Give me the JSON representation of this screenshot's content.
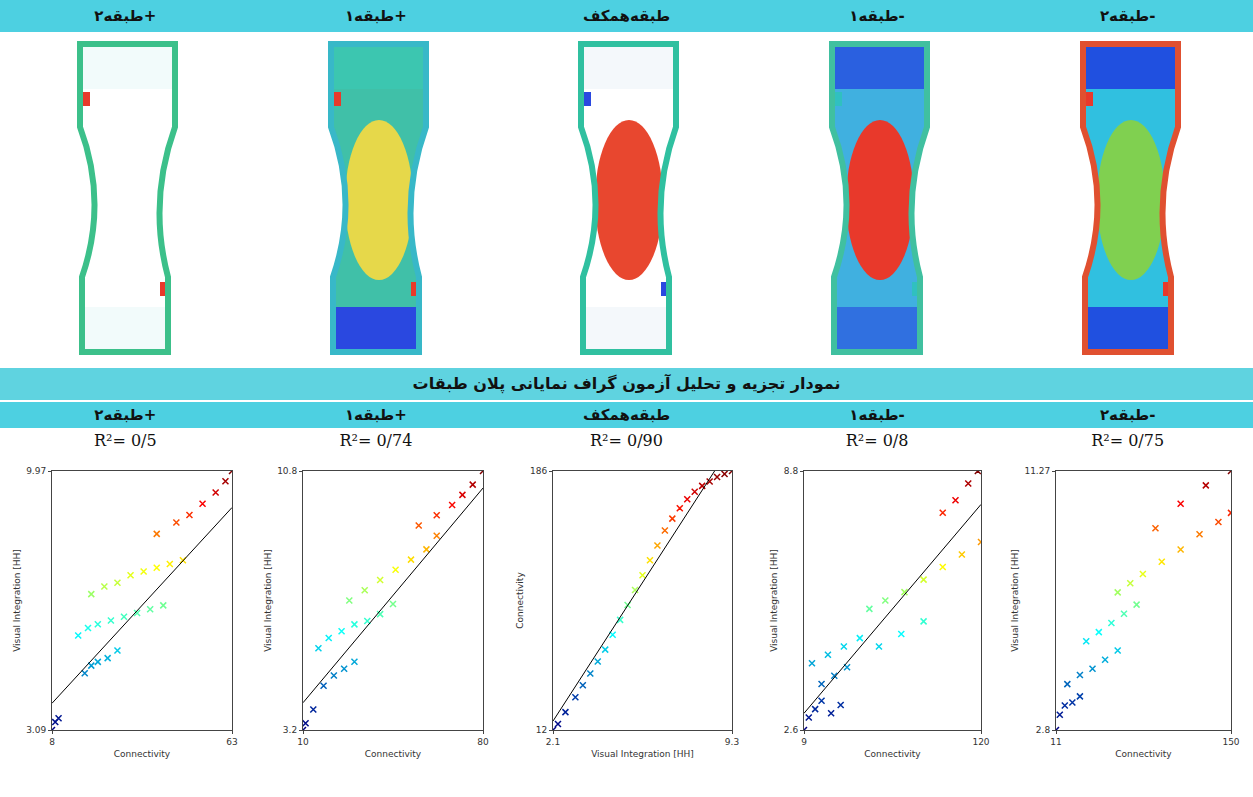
{
  "header": {
    "floors": [
      "طبقه۲+",
      "طبقه۱+",
      "طبقه‌همکف",
      "طبقه۱-",
      "طبقه۲-"
    ]
  },
  "section_title": "نمودار تجزیه و تحلیل آزمون گراف نمایانی پلان طبقات",
  "chart_data": [
    {
      "type": "scatter",
      "title": "طبقه۲+",
      "subtitle": "R²= 0/5",
      "x_label": "Connectivity",
      "y_label": "Visual Integration [HH]",
      "xlim": [
        8,
        63
      ],
      "ylim": [
        3.09,
        9.97
      ],
      "xticks": [
        8,
        63
      ],
      "yticks": [
        3.09,
        9.97
      ],
      "grid": false,
      "marker": "x",
      "series": [
        {
          "type": "scatter",
          "x": [
            8,
            9,
            10,
            18,
            20,
            22,
            25,
            28,
            16,
            19,
            22,
            26,
            30,
            34,
            38,
            42,
            20,
            24,
            28,
            32,
            36,
            40,
            44,
            48,
            40,
            46,
            50,
            54,
            58,
            61,
            63
          ],
          "values": [
            3.09,
            3.3,
            3.4,
            4.6,
            4.8,
            4.9,
            5.0,
            5.2,
            5.6,
            5.8,
            5.9,
            6.0,
            6.1,
            6.2,
            6.3,
            6.4,
            6.7,
            6.9,
            7.0,
            7.2,
            7.3,
            7.4,
            7.5,
            7.6,
            8.3,
            8.6,
            8.8,
            9.1,
            9.4,
            9.7,
            9.97
          ]
        },
        {
          "type": "line",
          "color": "#000000",
          "x": [
            8,
            63
          ],
          "values": [
            3.8,
            9.0
          ]
        }
      ]
    },
    {
      "type": "scatter",
      "title": "طبقه۱+",
      "subtitle": "R²= 0/74",
      "x_label": "Connectivity",
      "y_label": "Visual Integration [HH]",
      "xlim": [
        10,
        80
      ],
      "ylim": [
        3.2,
        10.8
      ],
      "xticks": [
        10,
        80
      ],
      "yticks": [
        3.2,
        10.8
      ],
      "grid": false,
      "marker": "x",
      "series": [
        {
          "type": "scatter",
          "x": [
            10,
            11,
            14,
            18,
            22,
            26,
            30,
            16,
            20,
            25,
            30,
            35,
            40,
            45,
            28,
            34,
            40,
            46,
            52,
            58,
            62,
            55,
            62,
            68,
            72,
            76,
            80
          ],
          "values": [
            3.2,
            3.4,
            3.8,
            4.5,
            4.8,
            5.0,
            5.2,
            5.6,
            5.9,
            6.1,
            6.3,
            6.4,
            6.6,
            6.9,
            7.0,
            7.3,
            7.6,
            7.9,
            8.2,
            8.5,
            8.9,
            9.2,
            9.5,
            9.8,
            10.1,
            10.4,
            10.8
          ]
        },
        {
          "type": "line",
          "color": "#000000",
          "x": [
            10,
            80
          ],
          "values": [
            4.0,
            10.3
          ]
        }
      ]
    },
    {
      "type": "scatter",
      "title": "طبقه‌همکف",
      "subtitle": "R²= 0/90",
      "x_label": "Visual Integration [HH]",
      "y_label": "Connectivity",
      "xlim": [
        2.1,
        9.3
      ],
      "ylim": [
        12,
        186
      ],
      "xticks": [
        2.1,
        9.3
      ],
      "yticks": [
        12,
        186
      ],
      "grid": false,
      "marker": "x",
      "series": [
        {
          "type": "scatter",
          "x": [
            2.1,
            2.3,
            2.6,
            3.0,
            3.3,
            3.6,
            3.9,
            4.2,
            4.5,
            4.8,
            5.1,
            5.4,
            5.7,
            6.0,
            6.3,
            6.6,
            6.9,
            7.2,
            7.5,
            7.8,
            8.1,
            8.4,
            8.7,
            9.0,
            9.3
          ],
          "values": [
            12,
            16,
            24,
            34,
            42,
            50,
            58,
            66,
            76,
            86,
            96,
            106,
            116,
            126,
            136,
            146,
            154,
            161,
            167,
            172,
            176,
            179,
            182,
            184,
            186
          ]
        },
        {
          "type": "line",
          "color": "#000000",
          "x": [
            2.1,
            8.6
          ],
          "values": [
            18,
            186
          ]
        }
      ]
    },
    {
      "type": "scatter",
      "title": "طبقه۱-",
      "subtitle": "R²= 0/8",
      "x_label": "Connectivity",
      "y_label": "Visual Integration [HH]",
      "xlim": [
        9,
        120
      ],
      "ylim": [
        2.6,
        8.8
      ],
      "xticks": [
        9,
        120
      ],
      "yticks": [
        2.6,
        8.8
      ],
      "grid": false,
      "marker": "x",
      "series": [
        {
          "type": "scatter",
          "x": [
            9,
            12,
            16,
            20,
            26,
            32,
            20,
            28,
            36,
            14,
            24,
            34,
            44,
            56,
            70,
            84,
            50,
            60,
            72,
            84,
            96,
            108,
            120,
            96,
            104,
            112,
            118
          ],
          "values": [
            2.6,
            2.9,
            3.1,
            3.3,
            3.0,
            3.2,
            3.7,
            3.9,
            4.1,
            4.2,
            4.4,
            4.6,
            4.8,
            4.6,
            4.9,
            5.2,
            5.5,
            5.7,
            5.9,
            6.2,
            6.5,
            6.8,
            7.1,
            7.8,
            8.1,
            8.5,
            8.8
          ]
        },
        {
          "type": "line",
          "color": "#000000",
          "x": [
            9,
            120
          ],
          "values": [
            3.0,
            8.0
          ]
        }
      ]
    },
    {
      "type": "scatter",
      "title": "طبقه۲-",
      "subtitle": "R²= 0/75",
      "x_label": "Connectivity",
      "y_label": "Visual Integration [HH]",
      "xlim": [
        11,
        150
      ],
      "ylim": [
        2.8,
        11.27
      ],
      "xticks": [
        11,
        150
      ],
      "yticks": [
        2.8,
        11.27
      ],
      "grid": false,
      "marker": "x",
      "series": [
        {
          "type": "scatter",
          "x": [
            11,
            14,
            18,
            24,
            30,
            20,
            30,
            40,
            50,
            60,
            35,
            45,
            55,
            65,
            75,
            60,
            70,
            80,
            95,
            110,
            125,
            140,
            150,
            90,
            110,
            130,
            150
          ],
          "values": [
            2.8,
            3.3,
            3.6,
            3.7,
            3.9,
            4.3,
            4.6,
            4.8,
            5.1,
            5.4,
            5.7,
            6.0,
            6.3,
            6.6,
            6.9,
            7.3,
            7.6,
            7.9,
            8.3,
            8.7,
            9.2,
            9.6,
            9.9,
            9.4,
            10.2,
            10.8,
            11.27
          ]
        }
      ]
    }
  ]
}
